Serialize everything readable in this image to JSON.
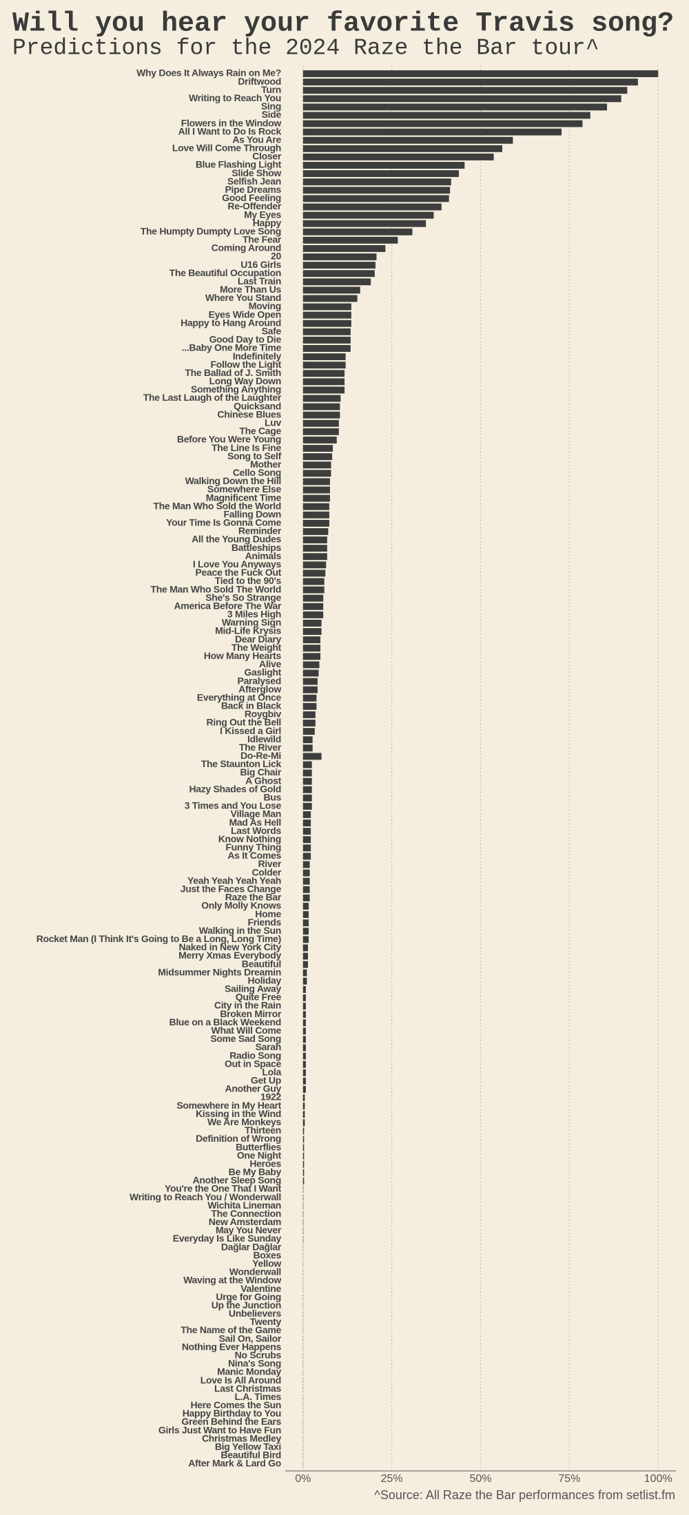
{
  "chart_data": {
    "type": "barh",
    "title": "Will you hear your favorite Travis song?",
    "subtitle": "Predictions for the 2024 Raze the Bar tour^",
    "caption": "^Source: All Raze the Bar performances from setlist.fm",
    "color": "#3d3d3d",
    "grid": true,
    "xlim": [
      -5,
      105
    ],
    "xticks": [
      {
        "value": 0,
        "label": "0%"
      },
      {
        "value": 25,
        "label": "25%"
      },
      {
        "value": 50,
        "label": "50%"
      },
      {
        "value": 75,
        "label": "75%"
      },
      {
        "value": 100,
        "label": "100%"
      }
    ],
    "categories": [
      "Why Does It Always Rain on Me?",
      "Driftwood",
      "Turn",
      "Writing to Reach You",
      "Sing",
      "Side",
      "Flowers in the Window",
      "All I Want to Do Is Rock",
      "As You Are",
      "Love Will Come Through",
      "Closer",
      "Blue Flashing Light",
      "Slide Show",
      "Selfish Jean",
      "Pipe Dreams",
      "Good Feeling",
      "Re-Offender",
      "My Eyes",
      "Happy",
      "The Humpty Dumpty Love Song",
      "The Fear",
      "Coming Around",
      "20",
      "U16 Girls",
      "The Beautiful Occupation",
      "Last Train",
      "More Than Us",
      "Where You Stand",
      "Moving",
      "Eyes Wide Open",
      "Happy to Hang Around",
      "Safe",
      "Good Day to Die",
      "...Baby One More Time",
      "Indefinitely",
      "Follow the Light",
      "The Ballad of J. Smith",
      "Long Way Down",
      "Something Anything",
      "The Last Laugh of the Laughter",
      "Quicksand",
      "Chinese Blues",
      "Luv",
      "The Cage",
      "Before You Were Young",
      "The Line Is Fine",
      "Song to Self",
      "Mother",
      "Cello Song",
      "Walking Down the Hill",
      "Somewhere Else",
      "Magnificent Time",
      "The Man Who Sold the World",
      "Falling Down",
      "Your Time Is Gonna Come",
      "Reminder",
      "All the Young Dudes",
      "Battleships",
      "Animals",
      "I Love You Anyways",
      "Peace the Fuck Out",
      "Tied to the 90's",
      "The Man Who Sold The World",
      "She's So Strange",
      "America Before The War",
      "3 Miles High",
      "Warning Sign",
      "Mid-Life Krysis",
      "Dear Diary",
      "The Weight",
      "How Many Hearts",
      "Alive",
      "Gaslight",
      "Paralysed",
      "Afterglow",
      "Everything at Once",
      "Back in Black",
      "Roygbiv",
      "Ring Out the Bell",
      "I Kissed a Girl",
      "Idlewild",
      "The River",
      "Do-Re-Mi",
      "The Staunton Lick",
      "Big Chair",
      "A Ghost",
      "Hazy Shades of Gold",
      "Bus",
      "3 Times and You Lose",
      "Village Man",
      "Mad As Hell",
      "Last Words",
      "Know Nothing",
      "Funny Thing",
      "As It Comes",
      "River",
      "Colder",
      "Yeah Yeah Yeah Yeah",
      "Just the Faces Change",
      "Raze the Bar",
      "Only Molly Knows",
      "Home",
      "Friends",
      "Walking in the Sun",
      "Rocket Man (I Think It's Going to Be a Long, Long Time)",
      "Naked in New York City",
      "Merry Xmas Everybody",
      "Beautiful",
      "Midsummer Nights Dreamin",
      "Holiday",
      "Sailing Away",
      "Quite Free",
      "City in the Rain",
      "Broken Mirror",
      "Blue on a Black Weekend",
      "What Will Come",
      "Some Sad Song",
      "Sarah",
      "Radio Song",
      "Out in Space",
      "Lola",
      "Get Up",
      "Another Guy",
      "1922",
      "Somewhere in My Heart",
      "Kissing in the Wind",
      "We Are Monkeys",
      "Thirteen",
      "Definition of Wrong",
      "Butterflies",
      "One Night",
      "Heroes",
      "Be My Baby",
      "Another Sleep Song",
      "You're the One That I Want",
      "Writing to Reach You / Wonderwall",
      "Wichita Lineman",
      "The Connection",
      "New Amsterdam",
      "May You Never",
      "Everyday Is Like Sunday",
      "Dağlar Dağlar",
      "Boxes",
      "Yellow",
      "Wonderwall",
      "Waving at the Window",
      "Valentine",
      "Urge for Going",
      "Up the Junction",
      "Unbelievers",
      "Twenty",
      "The Name of the Game",
      "Sail On, Sailor",
      "Nothing Ever Happens",
      "No Scrubs",
      "Nina's Song",
      "Manic Monday",
      "Love Is All Around",
      "Last Christmas",
      "L.A. Times",
      "Here Comes the Sun",
      "Happy Birthday to You",
      "Green Behind the Ears",
      "Girls Just Want to Have Fun",
      "Christmas Medley",
      "Big Yellow Taxi",
      "Beautiful Bird",
      "After Mark & Lard Go"
    ],
    "values": [
      100,
      94.3,
      91.3,
      89.6,
      85.6,
      80.9,
      78.7,
      72.8,
      59.1,
      56.1,
      53.7,
      45.5,
      43.9,
      41.7,
      41.4,
      41.1,
      39,
      36.8,
      34.6,
      30.8,
      26.7,
      23.2,
      20.7,
      20.4,
      20.2,
      19.1,
      16.1,
      15.3,
      13.6,
      13.6,
      13.6,
      13.4,
      13.4,
      13.4,
      12,
      12,
      11.7,
      11.7,
      11.7,
      10.6,
      10.4,
      10.4,
      10.1,
      10.1,
      9.5,
      8.4,
      8.2,
      7.9,
      7.9,
      7.6,
      7.6,
      7.6,
      7.4,
      7.4,
      7.4,
      7.1,
      6.8,
      6.8,
      6.8,
      6.5,
      6.3,
      6,
      6,
      5.7,
      5.7,
      5.7,
      5.2,
      5.2,
      4.9,
      4.9,
      4.9,
      4.6,
      4.4,
      4.1,
      4.1,
      3.8,
      3.8,
      3.5,
      3.5,
      3.3,
      2.7,
      2.7,
      5.2,
      2.5,
      2.5,
      2.5,
      2.5,
      2.5,
      2.5,
      2.2,
      2.2,
      2.2,
      2.2,
      2.2,
      2.2,
      1.9,
      1.9,
      1.9,
      1.9,
      1.9,
      1.6,
      1.6,
      1.6,
      1.6,
      1.6,
      1.4,
      1.4,
      1.4,
      1.1,
      1.1,
      0.8,
      0.8,
      0.8,
      0.8,
      0.8,
      0.8,
      0.8,
      0.8,
      0.8,
      0.8,
      0.8,
      0.8,
      0.8,
      0.5,
      0.5,
      0.5,
      0.5,
      0.3,
      0.3,
      0.3,
      0.3,
      0.3,
      0.3,
      0.3,
      0.1,
      0.1,
      0.1,
      0.1,
      0.1,
      0.1,
      0.1,
      0.05,
      0.05,
      0.05,
      0.05,
      0.05,
      0.05,
      0.05,
      0.05,
      0.05,
      0.05,
      0.05,
      0.05,
      0.05,
      0.05,
      0.05,
      0.05,
      0.05,
      0.05,
      0.05,
      0.05,
      0.05,
      0.05,
      0.05,
      0.05,
      0.05,
      0.05,
      0.05
    ]
  }
}
